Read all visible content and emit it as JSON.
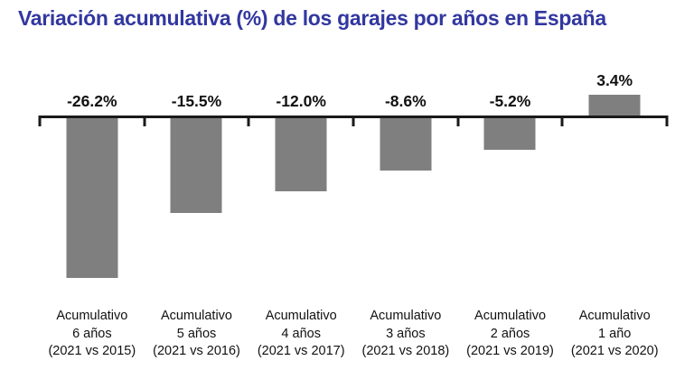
{
  "header": {
    "title": "Variación acumulativa (%) de los garajes por años en España",
    "title_color": "#3237A0"
  },
  "chart_data": {
    "type": "bar",
    "title": "Variación acumulativa (%) de los garajes por años en España",
    "unit": "%",
    "categories": [
      "Acumulativo\n6 años\n(2021 vs 2015)",
      "Acumulativo\n5 años\n(2021 vs 2016)",
      "Acumulativo\n4 años\n(2021 vs 2017)",
      "Acumulativo\n3 años\n(2021 vs 2018)",
      "Acumulativo\n2 años\n(2021 vs 2019)",
      "Acumulativo\n1 año\n(2021 vs 2020)"
    ],
    "values": [
      -26.2,
      -15.5,
      -12.0,
      -8.6,
      -5.2,
      3.4
    ],
    "value_labels": [
      "-26.2%",
      "-15.5%",
      "-12.0%",
      "-8.6%",
      "-5.2%",
      "3.4%"
    ],
    "bar_color": "#7F7F7F",
    "axis_color": "#1A1A1A",
    "label_color": "#111111",
    "baseline": 0,
    "grid": false,
    "legend": false,
    "xlabel": "",
    "ylabel": ""
  }
}
